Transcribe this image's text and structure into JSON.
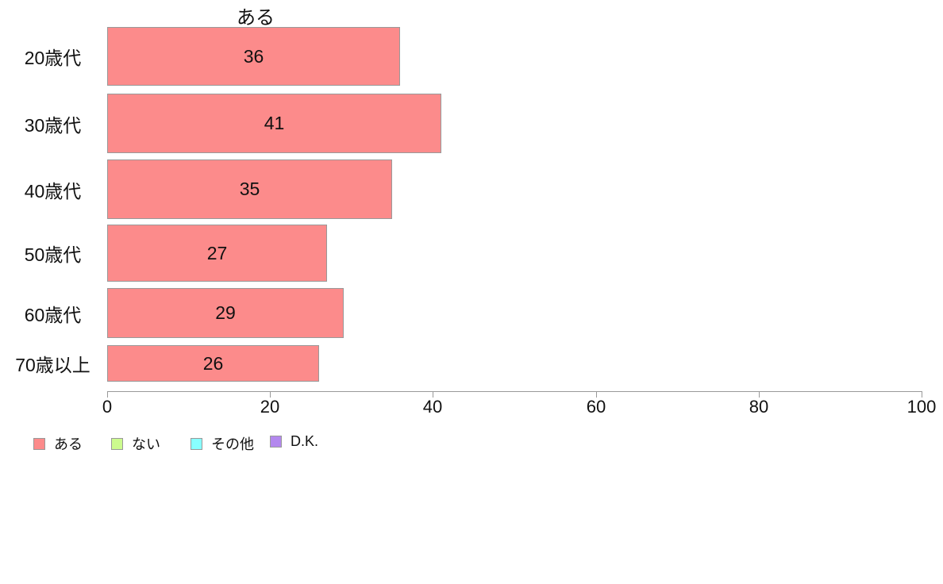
{
  "chart_data": {
    "type": "bar",
    "orientation": "horizontal",
    "title": "ある",
    "categories": [
      "20歳代",
      "30歳代",
      "40歳代",
      "50歳代",
      "60歳代",
      "70歳以上"
    ],
    "values": [
      36,
      41,
      35,
      27,
      29,
      26
    ],
    "xlabel": "",
    "ylabel": "",
    "xlim": [
      0,
      100
    ],
    "x_ticks": [
      0,
      20,
      40,
      60,
      80,
      100
    ],
    "grid": false,
    "bar_color": "#FC8B8B",
    "bar_border_color": "#999999",
    "axis_color": "#999999",
    "text_color": "#111111",
    "legend_position": "bottom-left",
    "legend": [
      {
        "label": "ある",
        "color": "#FC8B8B"
      },
      {
        "label": "ない",
        "color": "#CCFB8E"
      },
      {
        "label": "その他",
        "color": "#88FFFF"
      },
      {
        "label": "D.K.",
        "color": "#B388EE"
      }
    ]
  }
}
